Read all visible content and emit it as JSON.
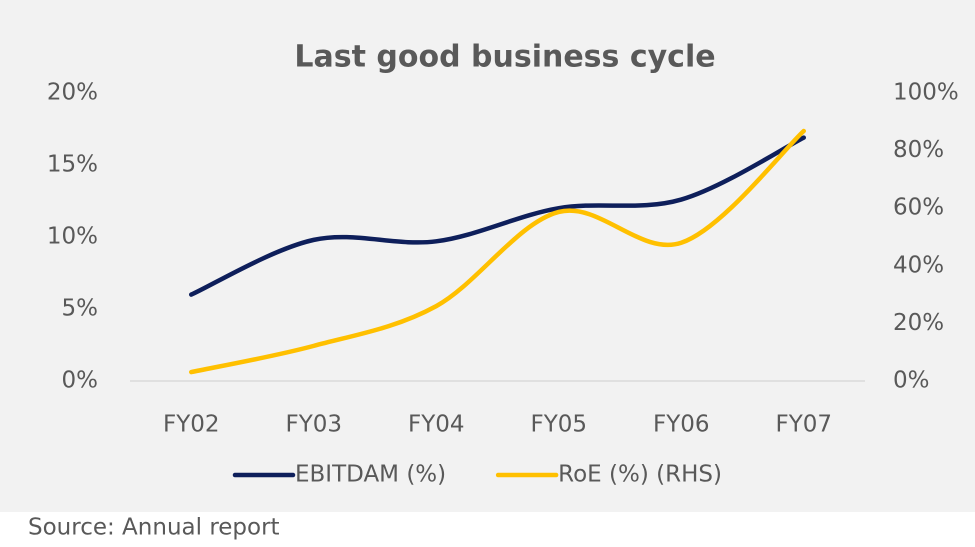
{
  "chart_data": {
    "type": "line",
    "title": "Last good business cycle",
    "categories": [
      "FY02",
      "FY03",
      "FY04",
      "FY05",
      "FY06",
      "FY07"
    ],
    "series": [
      {
        "name": "EBITDAM (%)",
        "color": "#0e1f5b",
        "values": [
          6.0,
          9.8,
          9.7,
          12.0,
          12.6,
          16.9
        ]
      },
      {
        "name": "RoE (%) (RHS)",
        "color": "#ffc000",
        "axis": "y2",
        "values": [
          3.1,
          12.2,
          26,
          58.7,
          48,
          86.8
        ]
      }
    ],
    "ylim": [
      0,
      20
    ],
    "yticks": [
      {
        "value": 0,
        "label": "0%"
      },
      {
        "value": 5,
        "label": "5%"
      },
      {
        "value": 10,
        "label": "10%"
      },
      {
        "value": 15,
        "label": "15%"
      },
      {
        "value": 20,
        "label": "20%"
      }
    ],
    "y2lim": [
      0,
      100
    ],
    "y2ticks": [
      {
        "value": 0,
        "label": "0%"
      },
      {
        "value": 20,
        "label": "20%"
      },
      {
        "value": 40,
        "label": "40%"
      },
      {
        "value": 60,
        "label": "60%"
      },
      {
        "value": 80,
        "label": "80%"
      },
      {
        "value": 100,
        "label": "100%"
      }
    ],
    "grid": false,
    "legend": "bottom",
    "source": "Source: Annual report"
  }
}
